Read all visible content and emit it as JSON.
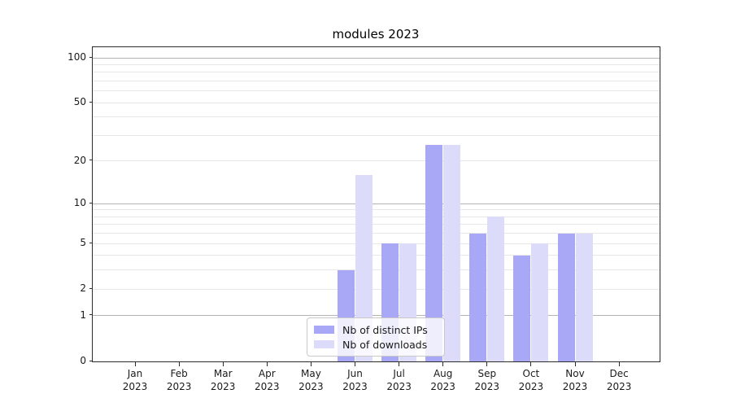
{
  "title": "modules 2023",
  "year_label": "2023",
  "chart_data": {
    "type": "bar",
    "title": "modules 2023",
    "categories": [
      "Jan 2023",
      "Feb 2023",
      "Mar 2023",
      "Apr 2023",
      "May 2023",
      "Jun 2023",
      "Jul 2023",
      "Aug 2023",
      "Sep 2023",
      "Oct 2023",
      "Nov 2023",
      "Dec 2023"
    ],
    "months": [
      "Jan",
      "Feb",
      "Mar",
      "Apr",
      "May",
      "Jun",
      "Jul",
      "Aug",
      "Sep",
      "Oct",
      "Nov",
      "Dec"
    ],
    "series": [
      {
        "name": "Nb of distinct IPs",
        "color": "#a8a8f6",
        "values": [
          0,
          0,
          0,
          0,
          0,
          3,
          5,
          26,
          6,
          4,
          6,
          0
        ]
      },
      {
        "name": "Nb of downloads",
        "color": "#dcdcfa",
        "values": [
          0,
          0,
          0,
          0,
          0,
          16,
          5,
          26,
          8,
          5,
          6,
          0
        ]
      }
    ],
    "xlabel": "",
    "ylabel": "",
    "y_axis": {
      "scale": "log1p",
      "ylim": [
        0,
        114
      ],
      "labeled_ticks": [
        100,
        50,
        20,
        10,
        5,
        2,
        1,
        0
      ],
      "decade_gridlines": [
        1,
        10,
        100
      ],
      "minor_gridlines": [
        2,
        3,
        4,
        5,
        6,
        7,
        8,
        9,
        20,
        30,
        40,
        50,
        60,
        70,
        80,
        90
      ]
    },
    "grid": true,
    "legend_position": "lower center"
  },
  "legend": {
    "items": [
      {
        "label": "Nb of distinct IPs",
        "color": "#a8a8f6"
      },
      {
        "label": "Nb of downloads",
        "color": "#dcdcfa"
      }
    ]
  }
}
